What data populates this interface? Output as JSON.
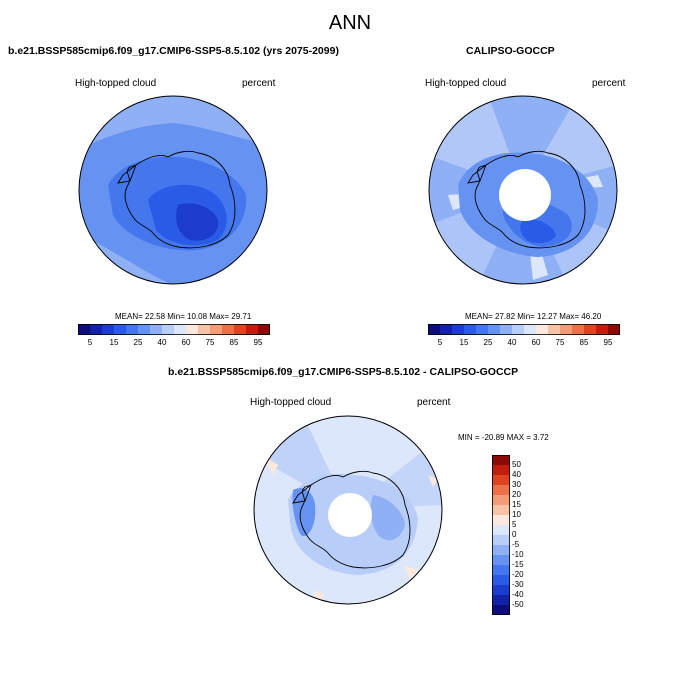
{
  "figure": {
    "title": "ANN"
  },
  "panels": [
    {
      "id": "model",
      "title": "b.e21.BSSP585cmip6.f09_g17.CMIP6-SSP5-8.5.102 (yrs 2075-2099)",
      "left_label": "High-topped cloud",
      "right_label": "percent",
      "stats": "MEAN=  22.58  Min=  10.08  Max=  29.71"
    },
    {
      "id": "obs",
      "title": "CALIPSO-GOCCP",
      "left_label": "High-topped cloud",
      "right_label": "percent",
      "stats": "MEAN=  27.82  Min=  12.27  Max=  46.20"
    },
    {
      "id": "diff",
      "title": "b.e21.BSSP585cmip6.f09_g17.CMIP6-SSP5-8.5.102 - CALIPSO-GOCCP",
      "left_label": "High-topped cloud",
      "right_label": "percent",
      "stats": "MIN = -20.89 MAX =   3.72"
    }
  ],
  "colorbar_abs": {
    "colors": [
      "#0b0b7a",
      "#1320a8",
      "#1c3cd0",
      "#2a5ae8",
      "#4477ee",
      "#6692f2",
      "#8fb0f5",
      "#b8cdf8",
      "#dde7fb",
      "#fde8dd",
      "#f8c2a6",
      "#f39c78",
      "#ec7048",
      "#df4420",
      "#c21c0c",
      "#8a0a06"
    ],
    "labels": [
      "5",
      "15",
      "25",
      "40",
      "60",
      "75",
      "85",
      "95"
    ]
  },
  "colorbar_diff": {
    "colors": [
      "#8a0a06",
      "#c21c0c",
      "#df4420",
      "#ec7048",
      "#f39c78",
      "#f8c2a6",
      "#fde8dd",
      "#dde7fb",
      "#b8cdf8",
      "#8fb0f5",
      "#6692f2",
      "#4477ee",
      "#2a5ae8",
      "#1c3cd0",
      "#1320a8",
      "#0b0b7a"
    ],
    "labels": [
      "50",
      "40",
      "30",
      "20",
      "15",
      "10",
      "5",
      "0",
      "-5",
      "-10",
      "-15",
      "-20",
      "-30",
      "-40",
      "-50"
    ]
  }
}
